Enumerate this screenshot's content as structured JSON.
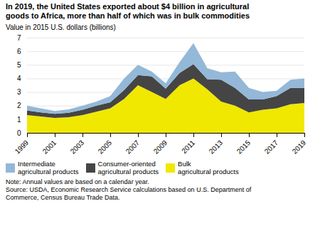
{
  "chart_data": {
    "type": "area",
    "stacked": true,
    "title": "In 2019, the United States exported about $4 billion in agricultural\ngoods to Africa, more than half of which was in bulk commodities",
    "ylabel": "Value in 2015 U.S. dollars (billions)",
    "notes": [
      "Note: Annual values are based on a calendar year.",
      "Source: USDA, Economic Research Service calculations based on U.S. Department of\nCommerce, Census Bureau Trade Data."
    ],
    "x": [
      1999,
      2000,
      2001,
      2002,
      2003,
      2004,
      2005,
      2006,
      2007,
      2008,
      2009,
      2010,
      2011,
      2012,
      2013,
      2014,
      2015,
      2016,
      2017,
      2018,
      2019
    ],
    "series": [
      {
        "name": "Bulk\nagricultural products",
        "color": "#f0e800",
        "values": [
          1.3,
          1.2,
          1.1,
          1.15,
          1.3,
          1.55,
          1.8,
          2.5,
          3.5,
          3.0,
          2.5,
          3.5,
          4.0,
          3.2,
          2.3,
          2.0,
          1.5,
          1.7,
          1.8,
          2.1,
          2.2
        ]
      },
      {
        "name": "Consumer-oriented\nagricultural products",
        "color": "#454545",
        "values": [
          0.35,
          0.3,
          0.3,
          0.32,
          0.4,
          0.45,
          0.45,
          0.65,
          0.75,
          1.15,
          0.75,
          0.9,
          1.05,
          0.75,
          1.6,
          1.3,
          0.95,
          0.75,
          0.9,
          1.2,
          1.1
        ]
      },
      {
        "name": "Intermediate\nagricultural products",
        "color": "#94b8d8",
        "values": [
          0.35,
          0.3,
          0.2,
          0.25,
          0.3,
          0.3,
          0.45,
          0.85,
          0.75,
          0.35,
          0.4,
          0.8,
          1.55,
          0.8,
          0.55,
          1.2,
          0.85,
          0.55,
          0.4,
          0.6,
          0.7
        ]
      }
    ],
    "xlim": [
      1999,
      2019
    ],
    "xticks": [
      1999,
      2001,
      2003,
      2005,
      2007,
      2009,
      2011,
      2013,
      2015,
      2017,
      2019
    ],
    "ylim": [
      0,
      7
    ],
    "yticks": [
      0,
      1,
      2,
      3,
      4,
      5,
      6,
      7
    ],
    "grid": true,
    "legend": "bottom"
  }
}
